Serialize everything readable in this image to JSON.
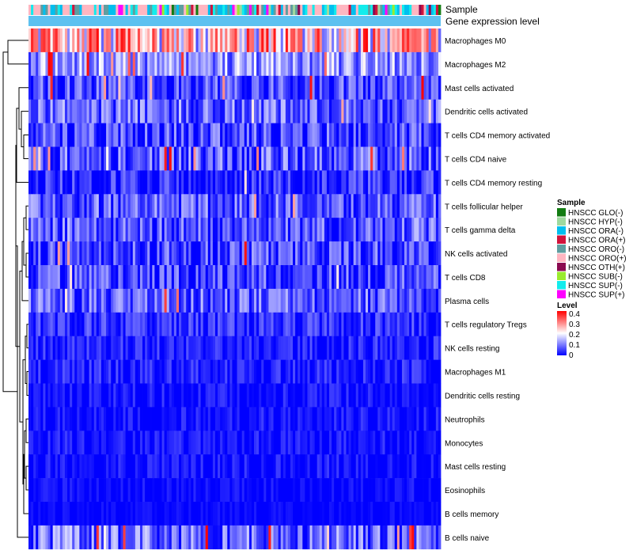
{
  "chart_data": {
    "type": "heatmap",
    "title": "",
    "annotation_tracks": [
      "Sample",
      "Gene expression level"
    ],
    "annotation_track_colors": {
      "Gene expression level": "#5dc1f0"
    },
    "rows": [
      {
        "label": "Macrophages M0",
        "mean": 0.22,
        "spread": 0.16,
        "hot_prob": 0.35
      },
      {
        "label": "Macrophages M2",
        "mean": 0.12,
        "spread": 0.09,
        "hot_prob": 0.06
      },
      {
        "label": "Mast cells activated",
        "mean": 0.05,
        "spread": 0.08,
        "hot_prob": 0.03
      },
      {
        "label": "Dendritic cells activated",
        "mean": 0.08,
        "spread": 0.08,
        "hot_prob": 0.03
      },
      {
        "label": "T cells CD4 memory activated",
        "mean": 0.05,
        "spread": 0.08,
        "hot_prob": 0.02
      },
      {
        "label": "T cells CD4 naive",
        "mean": 0.06,
        "spread": 0.09,
        "hot_prob": 0.02
      },
      {
        "label": "T cells CD4 memory resting",
        "mean": 0.03,
        "spread": 0.07,
        "hot_prob": 0.01
      },
      {
        "label": "T cells follicular helper",
        "mean": 0.07,
        "spread": 0.08,
        "hot_prob": 0.01
      },
      {
        "label": "T cells gamma delta",
        "mean": 0.07,
        "spread": 0.08,
        "hot_prob": 0.01
      },
      {
        "label": "NK cells activated",
        "mean": 0.05,
        "spread": 0.08,
        "hot_prob": 0.01
      },
      {
        "label": "T cells CD8",
        "mean": 0.05,
        "spread": 0.08,
        "hot_prob": 0.01
      },
      {
        "label": "Plasma cells",
        "mean": 0.07,
        "spread": 0.08,
        "hot_prob": 0.01
      },
      {
        "label": "T cells regulatory  Tregs",
        "mean": 0.03,
        "spread": 0.06,
        "hot_prob": 0.0
      },
      {
        "label": "NK cells resting",
        "mean": 0.02,
        "spread": 0.05,
        "hot_prob": 0.0
      },
      {
        "label": "Macrophages M1",
        "mean": 0.02,
        "spread": 0.05,
        "hot_prob": 0.0
      },
      {
        "label": "Dendritic cells resting",
        "mean": 0.01,
        "spread": 0.04,
        "hot_prob": 0.0
      },
      {
        "label": "Neutrophils",
        "mean": 0.01,
        "spread": 0.04,
        "hot_prob": 0.0
      },
      {
        "label": "Monocytes",
        "mean": 0.01,
        "spread": 0.04,
        "hot_prob": 0.0
      },
      {
        "label": "Mast cells resting",
        "mean": 0.01,
        "spread": 0.04,
        "hot_prob": 0.0
      },
      {
        "label": "Eosinophils",
        "mean": 0.005,
        "spread": 0.03,
        "hot_prob": 0.0
      },
      {
        "label": "B cells memory",
        "mean": 0.003,
        "spread": 0.02,
        "hot_prob": 0.0
      },
      {
        "label": "B cells naive",
        "mean": 0.08,
        "spread": 0.09,
        "hot_prob": 0.08
      }
    ],
    "n_samples": 170,
    "value_range": [
      0,
      0.4
    ],
    "color_scale": {
      "low": "#0000ff",
      "mid": "#ffffff",
      "high": "#ff0000",
      "mid_value": 0.2
    },
    "legend": {
      "sample_title": "Sample",
      "samples": [
        {
          "label": "HNSCC GLO(-)",
          "color": "#127c12"
        },
        {
          "label": "HNSCC HYP(-)",
          "color": "#9fd99f"
        },
        {
          "label": "HNSCC ORA(-)",
          "color": "#00bfef"
        },
        {
          "label": "HNSCC ORA(+)",
          "color": "#d2143c"
        },
        {
          "label": "HNSCC ORO(-)",
          "color": "#5f9ea0"
        },
        {
          "label": "HNSCC ORO(+)",
          "color": "#ffb6c1"
        },
        {
          "label": "HNSCC OTH(+)",
          "color": "#8b0a50"
        },
        {
          "label": "HNSCC SUB(-)",
          "color": "#9aeb2e"
        },
        {
          "label": "HNSCC SUP(-)",
          "color": "#12ecec"
        },
        {
          "label": "HNSCC SUP(+)",
          "color": "#ff00ff"
        }
      ],
      "level_title": "Level",
      "level_ticks": [
        "0.4",
        "0.3",
        "0.2",
        "0.1",
        "0"
      ]
    },
    "dendrogram": "row clustering (left)"
  }
}
